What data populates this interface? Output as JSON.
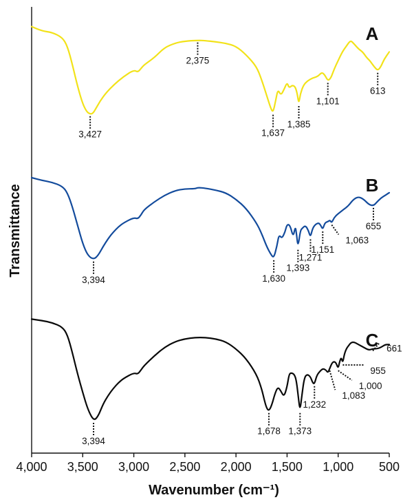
{
  "chart_data": {
    "type": "line",
    "xlabel": "Wavenumber (cm⁻¹)",
    "ylabel": "Transmittance",
    "xlim": [
      4000,
      500
    ],
    "x_reversed": true,
    "x_ticks": [
      "4,000",
      "3,500",
      "3,000",
      "2,500",
      "2,000",
      "1,500",
      "1,000",
      "500"
    ],
    "x_tick_values": [
      4000,
      3500,
      3000,
      2500,
      2000,
      1500,
      1000,
      500
    ],
    "y_ticks_shown": false,
    "grid": false,
    "series": [
      {
        "name": "A",
        "color": "#F2E219",
        "points": [
          [
            4000,
            0.935
          ],
          [
            3900,
            0.905
          ],
          [
            3800,
            0.895
          ],
          [
            3700,
            0.86
          ],
          [
            3650,
            0.8
          ],
          [
            3600,
            0.67
          ],
          [
            3550,
            0.52
          ],
          [
            3500,
            0.4
          ],
          [
            3460,
            0.345
          ],
          [
            3427,
            0.33
          ],
          [
            3400,
            0.335
          ],
          [
            3370,
            0.37
          ],
          [
            3330,
            0.42
          ],
          [
            3280,
            0.47
          ],
          [
            3200,
            0.53
          ],
          [
            3100,
            0.59
          ],
          [
            3000,
            0.635
          ],
          [
            2960,
            0.62
          ],
          [
            2930,
            0.645
          ],
          [
            2900,
            0.67
          ],
          [
            2800,
            0.72
          ],
          [
            2700,
            0.79
          ],
          [
            2600,
            0.82
          ],
          [
            2500,
            0.835
          ],
          [
            2375,
            0.84
          ],
          [
            2300,
            0.838
          ],
          [
            2200,
            0.83
          ],
          [
            2100,
            0.82
          ],
          [
            2000,
            0.8
          ],
          [
            1900,
            0.74
          ],
          [
            1800,
            0.66
          ],
          [
            1750,
            0.57
          ],
          [
            1700,
            0.46
          ],
          [
            1660,
            0.37
          ],
          [
            1637,
            0.34
          ],
          [
            1610,
            0.43
          ],
          [
            1590,
            0.5
          ],
          [
            1560,
            0.46
          ],
          [
            1530,
            0.5
          ],
          [
            1500,
            0.55
          ],
          [
            1480,
            0.51
          ],
          [
            1450,
            0.53
          ],
          [
            1420,
            0.52
          ],
          [
            1400,
            0.47
          ],
          [
            1385,
            0.4
          ],
          [
            1370,
            0.47
          ],
          [
            1340,
            0.53
          ],
          [
            1300,
            0.56
          ],
          [
            1250,
            0.58
          ],
          [
            1200,
            0.59
          ],
          [
            1160,
            0.62
          ],
          [
            1130,
            0.6
          ],
          [
            1101,
            0.56
          ],
          [
            1070,
            0.58
          ],
          [
            1040,
            0.64
          ],
          [
            1000,
            0.7
          ],
          [
            960,
            0.76
          ],
          [
            920,
            0.8
          ],
          [
            880,
            0.84
          ],
          [
            850,
            0.82
          ],
          [
            800,
            0.78
          ],
          [
            760,
            0.76
          ],
          [
            720,
            0.72
          ],
          [
            690,
            0.7
          ],
          [
            650,
            0.66
          ],
          [
            613,
            0.63
          ],
          [
            580,
            0.66
          ],
          [
            550,
            0.71
          ],
          [
            500,
            0.76
          ]
        ]
      },
      {
        "name": "B",
        "color": "#134B9C",
        "points": [
          [
            4000,
            0.905
          ],
          [
            3900,
            0.885
          ],
          [
            3800,
            0.87
          ],
          [
            3700,
            0.84
          ],
          [
            3650,
            0.79
          ],
          [
            3600,
            0.68
          ],
          [
            3550,
            0.54
          ],
          [
            3500,
            0.4
          ],
          [
            3450,
            0.31
          ],
          [
            3394,
            0.28
          ],
          [
            3350,
            0.31
          ],
          [
            3300,
            0.38
          ],
          [
            3250,
            0.44
          ],
          [
            3200,
            0.49
          ],
          [
            3150,
            0.53
          ],
          [
            3100,
            0.56
          ],
          [
            3000,
            0.6
          ],
          [
            2960,
            0.59
          ],
          [
            2930,
            0.62
          ],
          [
            2900,
            0.66
          ],
          [
            2800,
            0.72
          ],
          [
            2700,
            0.77
          ],
          [
            2600,
            0.805
          ],
          [
            2500,
            0.82
          ],
          [
            2400,
            0.82
          ],
          [
            2375,
            0.83
          ],
          [
            2300,
            0.825
          ],
          [
            2200,
            0.81
          ],
          [
            2100,
            0.79
          ],
          [
            2000,
            0.74
          ],
          [
            1900,
            0.67
          ],
          [
            1800,
            0.56
          ],
          [
            1750,
            0.48
          ],
          [
            1700,
            0.38
          ],
          [
            1660,
            0.32
          ],
          [
            1630,
            0.29
          ],
          [
            1600,
            0.38
          ],
          [
            1580,
            0.47
          ],
          [
            1550,
            0.44
          ],
          [
            1520,
            0.49
          ],
          [
            1500,
            0.55
          ],
          [
            1470,
            0.54
          ],
          [
            1440,
            0.45
          ],
          [
            1420,
            0.53
          ],
          [
            1410,
            0.49
          ],
          [
            1393,
            0.37
          ],
          [
            1370,
            0.5
          ],
          [
            1350,
            0.52
          ],
          [
            1320,
            0.54
          ],
          [
            1290,
            0.5
          ],
          [
            1271,
            0.45
          ],
          [
            1250,
            0.52
          ],
          [
            1220,
            0.55
          ],
          [
            1190,
            0.56
          ],
          [
            1170,
            0.54
          ],
          [
            1151,
            0.51
          ],
          [
            1130,
            0.56
          ],
          [
            1100,
            0.57
          ],
          [
            1080,
            0.58
          ],
          [
            1063,
            0.56
          ],
          [
            1040,
            0.6
          ],
          [
            1000,
            0.63
          ],
          [
            950,
            0.66
          ],
          [
            900,
            0.69
          ],
          [
            850,
            0.74
          ],
          [
            800,
            0.76
          ],
          [
            750,
            0.74
          ],
          [
            700,
            0.7
          ],
          [
            655,
            0.69
          ],
          [
            620,
            0.72
          ],
          [
            580,
            0.75
          ],
          [
            540,
            0.77
          ],
          [
            500,
            0.79
          ]
        ]
      },
      {
        "name": "C",
        "color": "#0A0A0A",
        "points": [
          [
            4000,
            0.91
          ],
          [
            3900,
            0.9
          ],
          [
            3800,
            0.885
          ],
          [
            3700,
            0.855
          ],
          [
            3650,
            0.8
          ],
          [
            3600,
            0.67
          ],
          [
            3550,
            0.52
          ],
          [
            3500,
            0.39
          ],
          [
            3450,
            0.27
          ],
          [
            3394,
            0.19
          ],
          [
            3350,
            0.22
          ],
          [
            3300,
            0.31
          ],
          [
            3250,
            0.37
          ],
          [
            3200,
            0.42
          ],
          [
            3150,
            0.46
          ],
          [
            3100,
            0.49
          ],
          [
            3000,
            0.53
          ],
          [
            2960,
            0.52
          ],
          [
            2930,
            0.55
          ],
          [
            2900,
            0.58
          ],
          [
            2800,
            0.65
          ],
          [
            2700,
            0.71
          ],
          [
            2600,
            0.75
          ],
          [
            2500,
            0.77
          ],
          [
            2400,
            0.78
          ],
          [
            2300,
            0.78
          ],
          [
            2200,
            0.77
          ],
          [
            2100,
            0.75
          ],
          [
            2000,
            0.7
          ],
          [
            1900,
            0.63
          ],
          [
            1800,
            0.52
          ],
          [
            1750,
            0.42
          ],
          [
            1720,
            0.33
          ],
          [
            1700,
            0.28
          ],
          [
            1678,
            0.26
          ],
          [
            1650,
            0.3
          ],
          [
            1620,
            0.38
          ],
          [
            1590,
            0.43
          ],
          [
            1560,
            0.4
          ],
          [
            1530,
            0.36
          ],
          [
            1500,
            0.43
          ],
          [
            1480,
            0.52
          ],
          [
            1460,
            0.53
          ],
          [
            1430,
            0.52
          ],
          [
            1410,
            0.48
          ],
          [
            1390,
            0.36
          ],
          [
            1373,
            0.26
          ],
          [
            1355,
            0.37
          ],
          [
            1330,
            0.5
          ],
          [
            1300,
            0.52
          ],
          [
            1270,
            0.5
          ],
          [
            1250,
            0.46
          ],
          [
            1232,
            0.45
          ],
          [
            1210,
            0.51
          ],
          [
            1180,
            0.54
          ],
          [
            1150,
            0.56
          ],
          [
            1120,
            0.55
          ],
          [
            1100,
            0.53
          ],
          [
            1083,
            0.56
          ],
          [
            1060,
            0.6
          ],
          [
            1040,
            0.61
          ],
          [
            1020,
            0.6
          ],
          [
            1000,
            0.56
          ],
          [
            985,
            0.61
          ],
          [
            970,
            0.64
          ],
          [
            955,
            0.6
          ],
          [
            940,
            0.66
          ],
          [
            920,
            0.7
          ],
          [
            900,
            0.72
          ],
          [
            880,
            0.74
          ],
          [
            850,
            0.75
          ],
          [
            800,
            0.73
          ],
          [
            750,
            0.71
          ],
          [
            700,
            0.69
          ],
          [
            661,
            0.7
          ],
          [
            620,
            0.7
          ],
          [
            580,
            0.71
          ],
          [
            540,
            0.73
          ],
          [
            500,
            0.73
          ]
        ]
      }
    ],
    "panel_labels": [
      "A",
      "B",
      "C"
    ],
    "peak_labels": [
      {
        "series": "A",
        "x": 3427,
        "text": "3,427",
        "side": "below"
      },
      {
        "series": "A",
        "x": 2375,
        "text": "2,375",
        "side": "below"
      },
      {
        "series": "A",
        "x": 1637,
        "text": "1,637",
        "side": "below"
      },
      {
        "series": "A",
        "x": 1385,
        "text": "1,385",
        "side": "below"
      },
      {
        "series": "A",
        "x": 1101,
        "text": "1,101",
        "side": "below"
      },
      {
        "series": "A",
        "x": 613,
        "text": "613",
        "side": "below"
      },
      {
        "series": "B",
        "x": 3394,
        "text": "3,394",
        "side": "below"
      },
      {
        "series": "B",
        "x": 1630,
        "text": "1,630",
        "side": "below"
      },
      {
        "series": "B",
        "x": 1393,
        "text": "1,393",
        "side": "below"
      },
      {
        "series": "B",
        "x": 1271,
        "text": "1,271",
        "side": "below"
      },
      {
        "series": "B",
        "x": 1151,
        "text": "1,151",
        "side": "below"
      },
      {
        "series": "B",
        "x": 1063,
        "text": "1,063",
        "side": "below"
      },
      {
        "series": "B",
        "x": 655,
        "text": "655",
        "side": "below"
      },
      {
        "series": "C",
        "x": 3394,
        "text": "3,394",
        "side": "below"
      },
      {
        "series": "C",
        "x": 1678,
        "text": "1,678",
        "side": "below"
      },
      {
        "series": "C",
        "x": 1373,
        "text": "1,373",
        "side": "below"
      },
      {
        "series": "C",
        "x": 1232,
        "text": "1,232",
        "side": "below"
      },
      {
        "series": "C",
        "x": 1083,
        "text": "1,083",
        "side": "below"
      },
      {
        "series": "C",
        "x": 1000,
        "text": "1,000",
        "side": "below"
      },
      {
        "series": "C",
        "x": 955,
        "text": "955",
        "side": "below"
      },
      {
        "series": "C",
        "x": 661,
        "text": "661",
        "side": "below"
      }
    ]
  }
}
